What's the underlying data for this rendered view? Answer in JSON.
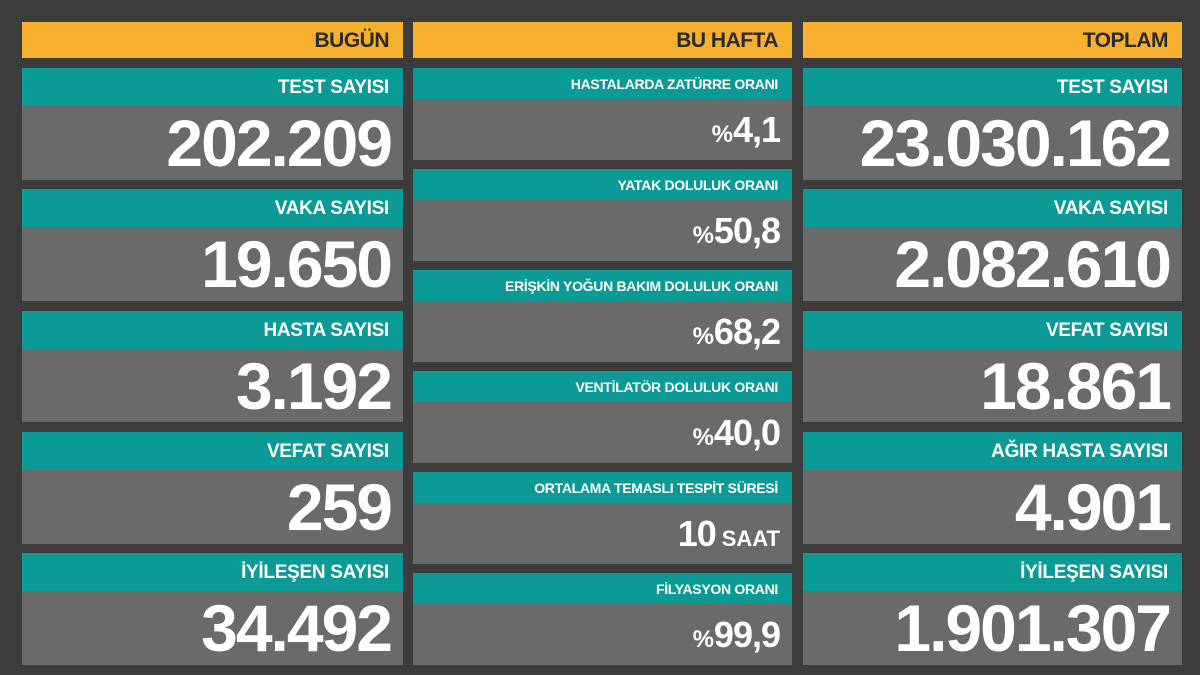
{
  "columns": [
    {
      "header": "BUGÜN",
      "items": [
        {
          "label": "TEST SAYISI",
          "value": "202.209"
        },
        {
          "label": "VAKA SAYISI",
          "value": "19.650"
        },
        {
          "label": "HASTA SAYISI",
          "value": "3.192"
        },
        {
          "label": "VEFAT SAYISI",
          "value": "259"
        },
        {
          "label": "İYİLEŞEN SAYISI",
          "value": "34.492"
        }
      ]
    },
    {
      "header": "BU HAFTA",
      "items": [
        {
          "label": "HASTALARDA ZATÜRRE ORANI",
          "prefix": "%",
          "value": "4,1"
        },
        {
          "label": "YATAK DOLULUK ORANI",
          "prefix": "%",
          "value": "50,8"
        },
        {
          "label": "ERİŞKİN YOĞUN BAKIM DOLULUK ORANI",
          "prefix": "%",
          "value": "68,2"
        },
        {
          "label": "VENTİLATÖR DOLULUK ORANI",
          "prefix": "%",
          "value": "40,0"
        },
        {
          "label": "ORTALAMA TEMASLI TESPİT SÜRESİ",
          "value": "10",
          "unit": "SAAT"
        },
        {
          "label": "FİLYASYON ORANI",
          "prefix": "%",
          "value": "99,9"
        }
      ]
    },
    {
      "header": "TOPLAM",
      "items": [
        {
          "label": "TEST SAYISI",
          "value": "23.030.162"
        },
        {
          "label": "VAKA SAYISI",
          "value": "2.082.610"
        },
        {
          "label": "VEFAT SAYISI",
          "value": "18.861"
        },
        {
          "label": "AĞIR HASTA SAYISI",
          "value": "4.901"
        },
        {
          "label": "İYİLEŞEN SAYISI",
          "value": "1.901.307"
        }
      ]
    }
  ]
}
